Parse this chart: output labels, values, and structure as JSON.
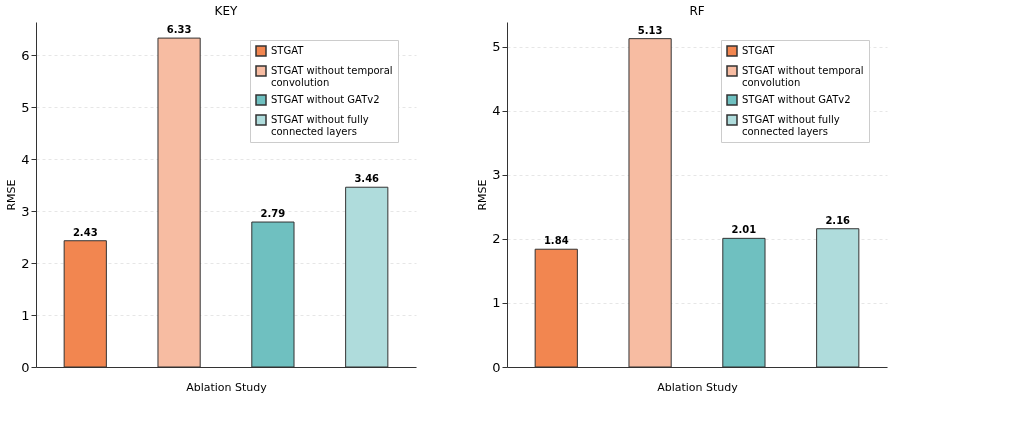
{
  "chart_data": [
    {
      "type": "bar",
      "title": "KEY",
      "xlabel": "Ablation Study",
      "ylabel": "RMSE",
      "categories": [
        null,
        null,
        null,
        null
      ],
      "ylim": [
        0,
        6.64
      ],
      "yticks": [
        0,
        1,
        2,
        3,
        4,
        5,
        6
      ],
      "grid": "y",
      "legend": "top right",
      "data_labels": true,
      "series": [
        {
          "name": "STGAT",
          "color": "#f28650",
          "values": [
            2.43,
            null,
            null,
            null
          ]
        },
        {
          "name": "STGAT without temporal convolution",
          "color": "#f7bca2",
          "values": [
            null,
            6.33,
            null,
            null
          ]
        },
        {
          "name": "STGAT without GATv2",
          "color": "#6fc0c0",
          "values": [
            null,
            null,
            2.79,
            null
          ]
        },
        {
          "name": "STGAT without fully connected layers",
          "color": "#afdcdc",
          "values": [
            null,
            null,
            null,
            3.46
          ]
        }
      ]
    },
    {
      "type": "bar",
      "title": "RF",
      "xlabel": "Ablation Study",
      "ylabel": "RMSE",
      "categories": [
        null,
        null,
        null,
        null
      ],
      "ylim": [
        0,
        5.39
      ],
      "yticks": [
        0,
        1,
        2,
        3,
        4,
        5
      ],
      "grid": "y",
      "legend": "top right",
      "data_labels": true,
      "series": [
        {
          "name": "STGAT",
          "color": "#f28650",
          "values": [
            1.84,
            null,
            null,
            null
          ]
        },
        {
          "name": "STGAT without temporal convolution",
          "color": "#f7bca2",
          "values": [
            null,
            5.13,
            null,
            null
          ]
        },
        {
          "name": "STGAT without GATv2",
          "color": "#6fc0c0",
          "values": [
            null,
            null,
            2.01,
            null
          ]
        },
        {
          "name": "STGAT without fully connected layers",
          "color": "#afdcdc",
          "values": [
            null,
            null,
            null,
            2.16
          ]
        }
      ]
    }
  ]
}
